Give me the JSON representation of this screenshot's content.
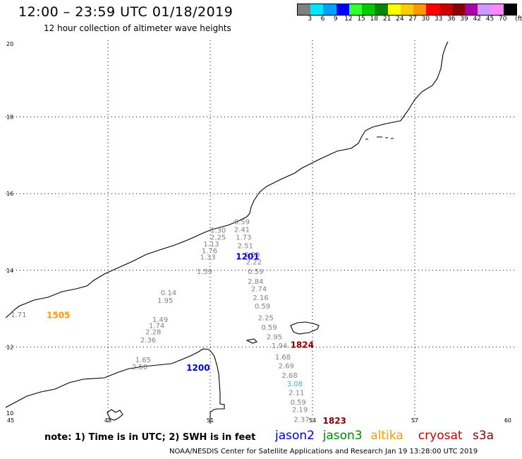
{
  "header": {
    "title": "12:00 – 23:59 UTC 01/18/2019",
    "subtitle": "12 hour collection of altimeter wave heights"
  },
  "legend": {
    "unit": "(ft)",
    "bins": [
      {
        "color": "#808080",
        "label": "3"
      },
      {
        "color": "#00e6ff",
        "label": "6"
      },
      {
        "color": "#00a0ff",
        "label": "9"
      },
      {
        "color": "#0000ff",
        "label": "12"
      },
      {
        "color": "#33ff33",
        "label": "15"
      },
      {
        "color": "#00cc00",
        "label": "18"
      },
      {
        "color": "#008800",
        "label": "21"
      },
      {
        "color": "#ffff00",
        "label": "24"
      },
      {
        "color": "#ffcc00",
        "label": "27"
      },
      {
        "color": "#ff9900",
        "label": "30"
      },
      {
        "color": "#ff0000",
        "label": "33"
      },
      {
        "color": "#cc0000",
        "label": "36"
      },
      {
        "color": "#880000",
        "label": "39"
      },
      {
        "color": "#aa00aa",
        "label": "42"
      },
      {
        "color": "#cc99ff",
        "label": "45"
      },
      {
        "color": "#ff88ff",
        "label": "70"
      },
      {
        "color": "#000000",
        "label": ""
      }
    ]
  },
  "axes": {
    "lon_labels": [
      "45",
      "48",
      "51",
      "54",
      "57",
      "60"
    ],
    "lat_labels": [
      "20",
      "18",
      "16",
      "14",
      "12",
      "10"
    ],
    "lon_range": [
      45,
      60
    ],
    "lat_range": [
      10,
      20
    ]
  },
  "satellite_colors": {
    "jason2": "#0000cc",
    "jason3": "#008800",
    "altika": "#ff9900",
    "cryosat": "#cc0000",
    "s3a": "#880000",
    "swh": "#808080",
    "swh_cyan": "#00ccff"
  },
  "time_labels": [
    {
      "text": "1505",
      "color": "#ff9900",
      "lon": 46.2,
      "lat": 12.75
    },
    {
      "text": "1201",
      "color": "#0000cc",
      "lon": 51.75,
      "lat": 14.28
    },
    {
      "text": "1200",
      "color": "#0000cc",
      "lon": 50.3,
      "lat": 11.38
    },
    {
      "text": "1824",
      "color": "#880000",
      "lon": 53.35,
      "lat": 11.98
    },
    {
      "text": "1823",
      "color": "#880000",
      "lon": 54.3,
      "lat": 10.0
    }
  ],
  "swh_points": [
    {
      "t": "1.71",
      "lon": 45.15,
      "lat": 12.78
    },
    {
      "t": "0.59",
      "lon": 51.7,
      "lat": 15.2
    },
    {
      "t": "2.41",
      "lon": 51.7,
      "lat": 15.0
    },
    {
      "t": "1.30",
      "lon": 51.0,
      "lat": 14.98
    },
    {
      "t": "2.25",
      "lon": 51.0,
      "lat": 14.8
    },
    {
      "t": "1.73",
      "lon": 51.75,
      "lat": 14.8
    },
    {
      "t": "1.13",
      "lon": 50.8,
      "lat": 14.62
    },
    {
      "t": "2.51",
      "lon": 51.8,
      "lat": 14.58
    },
    {
      "t": "1.76",
      "lon": 50.75,
      "lat": 14.45
    },
    {
      "t": "0.59",
      "lon": 52.0,
      "lat": 14.35
    },
    {
      "t": "1.33",
      "lon": 50.7,
      "lat": 14.28
    },
    {
      "t": "2.22",
      "lon": 52.05,
      "lat": 14.15
    },
    {
      "t": "1.59",
      "lon": 50.6,
      "lat": 13.9
    },
    {
      "t": "0.59",
      "lon": 52.1,
      "lat": 13.9
    },
    {
      "t": "2.84",
      "lon": 52.1,
      "lat": 13.65
    },
    {
      "t": "2.74",
      "lon": 52.2,
      "lat": 13.45
    },
    {
      "t": "2.16",
      "lon": 52.25,
      "lat": 13.22
    },
    {
      "t": "0.14",
      "lon": 49.55,
      "lat": 13.35
    },
    {
      "t": "1.95",
      "lon": 49.45,
      "lat": 13.15
    },
    {
      "t": "0.59",
      "lon": 52.3,
      "lat": 13.0
    },
    {
      "t": "1.49",
      "lon": 49.3,
      "lat": 12.65
    },
    {
      "t": "2.25",
      "lon": 52.4,
      "lat": 12.7
    },
    {
      "t": "1.74",
      "lon": 49.2,
      "lat": 12.5
    },
    {
      "t": "0.59",
      "lon": 52.5,
      "lat": 12.45
    },
    {
      "t": "2.28",
      "lon": 49.1,
      "lat": 12.33
    },
    {
      "t": "2.95",
      "lon": 52.65,
      "lat": 12.2
    },
    {
      "t": "2.36",
      "lon": 48.95,
      "lat": 12.12
    },
    {
      "t": "1.94",
      "lon": 52.8,
      "lat": 11.97
    },
    {
      "t": "1.65",
      "lon": 48.8,
      "lat": 11.6
    },
    {
      "t": "1.68",
      "lon": 52.9,
      "lat": 11.68
    },
    {
      "t": "2.50",
      "lon": 48.7,
      "lat": 11.42
    },
    {
      "t": "2.69",
      "lon": 53.0,
      "lat": 11.45
    },
    {
      "t": "2.68",
      "lon": 53.1,
      "lat": 11.2
    },
    {
      "t": "3.08",
      "lon": 53.25,
      "lat": 10.98,
      "cyan": true
    },
    {
      "t": "2.11",
      "lon": 53.3,
      "lat": 10.75
    },
    {
      "t": "0.59",
      "lon": 53.35,
      "lat": 10.5
    },
    {
      "t": "2.19",
      "lon": 53.4,
      "lat": 10.3
    },
    {
      "t": "2.37",
      "lon": 53.45,
      "lat": 10.05
    }
  ],
  "footer": {
    "note": "note:  1) Time is in UTC;  2) SWH is in feet",
    "sats": [
      {
        "name": "jason2",
        "color": "#0000cc"
      },
      {
        "name": "jason3",
        "color": "#008800"
      },
      {
        "name": "altika",
        "color": "#ff9900"
      },
      {
        "name": "cryosat",
        "color": "#cc0000"
      },
      {
        "name": "s3a",
        "color": "#880000"
      }
    ],
    "credit": "NOAA/NESDIS Center for Satellite Applications and Research    Jan 19 13:28:00 UTC 2019"
  }
}
